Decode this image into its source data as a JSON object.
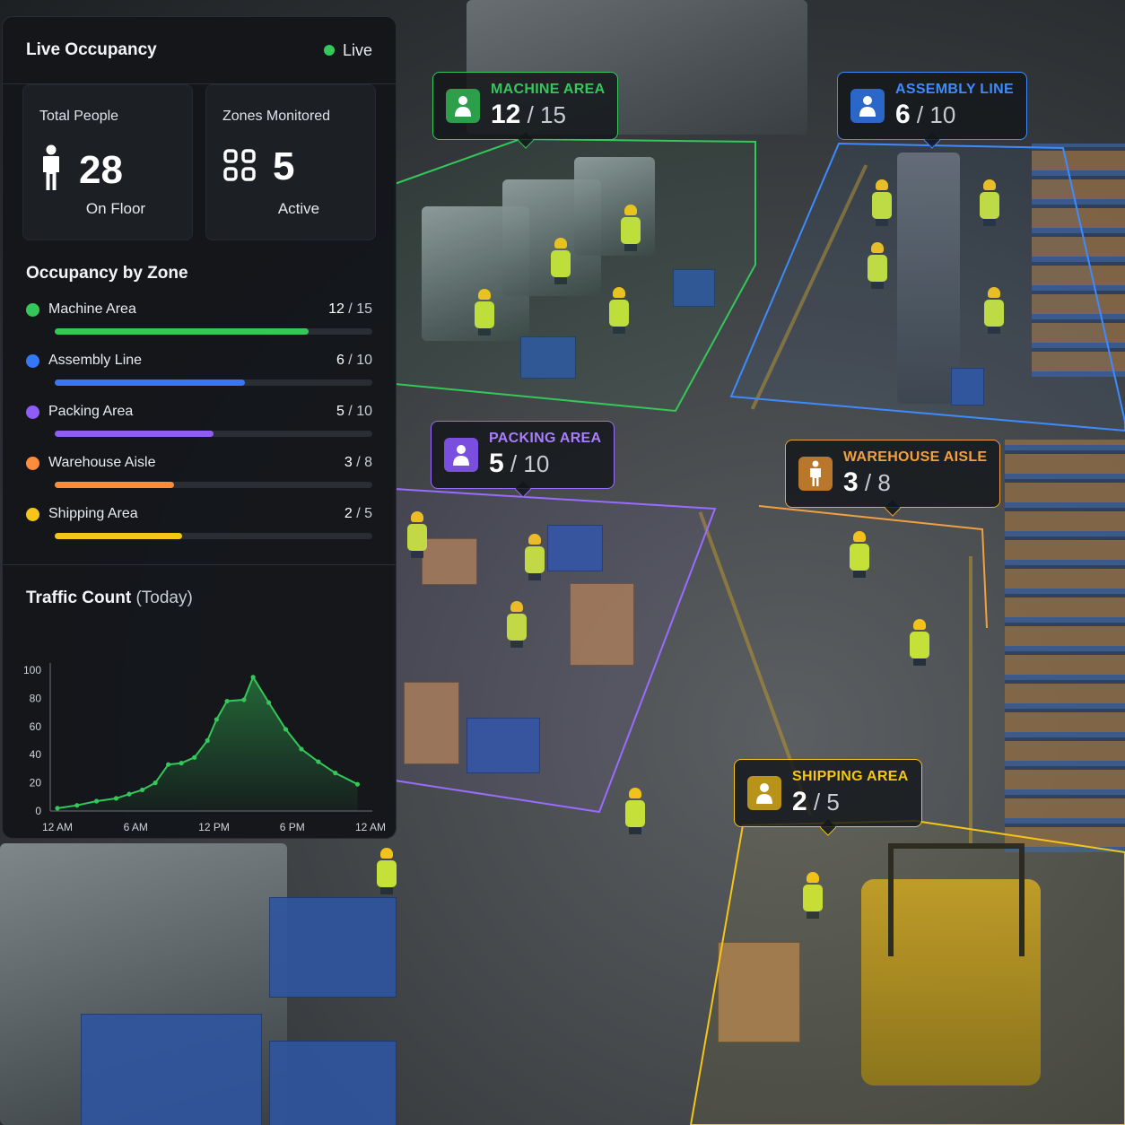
{
  "panel": {
    "title": "Live Occupancy",
    "live_label": "Live",
    "stats": {
      "total_people": {
        "label": "Total People",
        "value": "28",
        "sub": "On Floor",
        "icon": "person-icon"
      },
      "zones_monitored": {
        "label": "Zones Monitored",
        "value": "5",
        "sub": "Active",
        "icon": "grid-icon"
      }
    },
    "zones_title": "Occupancy by Zone",
    "zones": [
      {
        "name": "Machine Area",
        "current": 12,
        "capacity": 15,
        "color": "#34c759"
      },
      {
        "name": "Assembly Line",
        "current": 6,
        "capacity": 10,
        "color": "#3478f6"
      },
      {
        "name": "Packing Area",
        "current": 5,
        "capacity": 10,
        "color": "#8e5cf7"
      },
      {
        "name": "Warehouse Aisle",
        "current": 3,
        "capacity": 8,
        "color": "#ff8c3a"
      },
      {
        "name": "Shipping Area",
        "current": 2,
        "capacity": 5,
        "color": "#f5c518"
      }
    ],
    "traffic_title": "Traffic Count",
    "traffic_subtitle": "(Today)"
  },
  "overlay_labels": [
    {
      "name": "MACHINE AREA",
      "current": "12",
      "capacity": "15",
      "color": "#34c759"
    },
    {
      "name": "ASSEMBLY LINE",
      "current": "6",
      "capacity": "10",
      "color": "#3d8bfd"
    },
    {
      "name": "PACKING AREA",
      "current": "5",
      "capacity": "10",
      "color": "#9a6bff"
    },
    {
      "name": "WAREHOUSE AISLE",
      "current": "3",
      "capacity": "8",
      "color": "#f0a040"
    },
    {
      "name": "SHIPPING AREA",
      "current": "2",
      "capacity": "5",
      "color": "#f5c518"
    }
  ],
  "chart_data": {
    "type": "area",
    "title": "Traffic Count",
    "subtitle": "(Today)",
    "xlabel": "",
    "ylabel": "",
    "x": [
      0,
      1.5,
      3,
      4.5,
      5.5,
      6.5,
      7.5,
      8.5,
      9.5,
      10.5,
      11.5,
      12.2,
      13,
      14.3,
      15,
      16.2,
      17.5,
      18.7,
      20,
      21.3,
      23
    ],
    "values": [
      2,
      4,
      7,
      9,
      12,
      15,
      20,
      33,
      34,
      38,
      50,
      65,
      78,
      79,
      95,
      77,
      58,
      44,
      35,
      27,
      19
    ],
    "x_ticks": [
      "12 AM",
      "6 AM",
      "12 PM",
      "6 PM",
      "12 AM"
    ],
    "y_ticks": [
      "0",
      "20",
      "40",
      "60",
      "80",
      "100"
    ],
    "xlim": [
      0,
      24
    ],
    "ylim": [
      0,
      100
    ],
    "grid": false,
    "line_color": "#34c759"
  }
}
